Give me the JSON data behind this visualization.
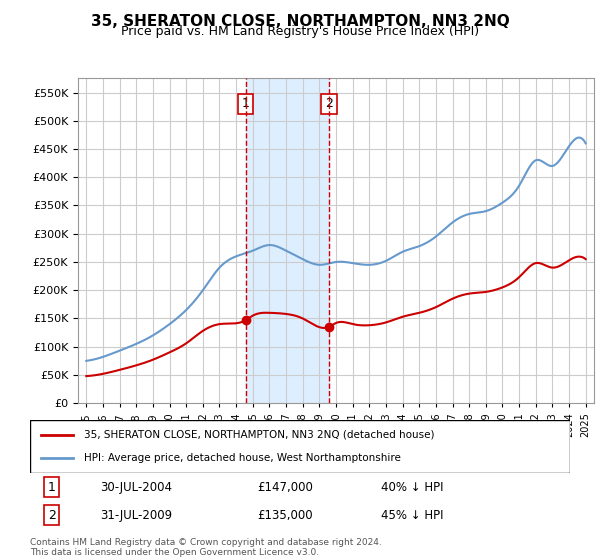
{
  "title": "35, SHERATON CLOSE, NORTHAMPTON, NN3 2NQ",
  "subtitle": "Price paid vs. HM Land Registry's House Price Index (HPI)",
  "legend_line1": "35, SHERATON CLOSE, NORTHAMPTON, NN3 2NQ (detached house)",
  "legend_line2": "HPI: Average price, detached house, West Northamptonshire",
  "transaction1_label": "1",
  "transaction1_date": "30-JUL-2004",
  "transaction1_price": "£147,000",
  "transaction1_hpi": "40% ↓ HPI",
  "transaction2_label": "2",
  "transaction2_date": "31-JUL-2009",
  "transaction2_price": "£135,000",
  "transaction2_hpi": "45% ↓ HPI",
  "footer": "Contains HM Land Registry data © Crown copyright and database right 2024.\nThis data is licensed under the Open Government Licence v3.0.",
  "vline1_year": 2004.58,
  "vline2_year": 2009.58,
  "ylim": [
    0,
    575000
  ],
  "xlim_start": 1994.5,
  "xlim_end": 2025.5,
  "red_color": "#cc0000",
  "blue_color": "#6699cc",
  "shade_color": "#ddeeff",
  "grid_color": "#cccccc",
  "background_color": "#ffffff"
}
